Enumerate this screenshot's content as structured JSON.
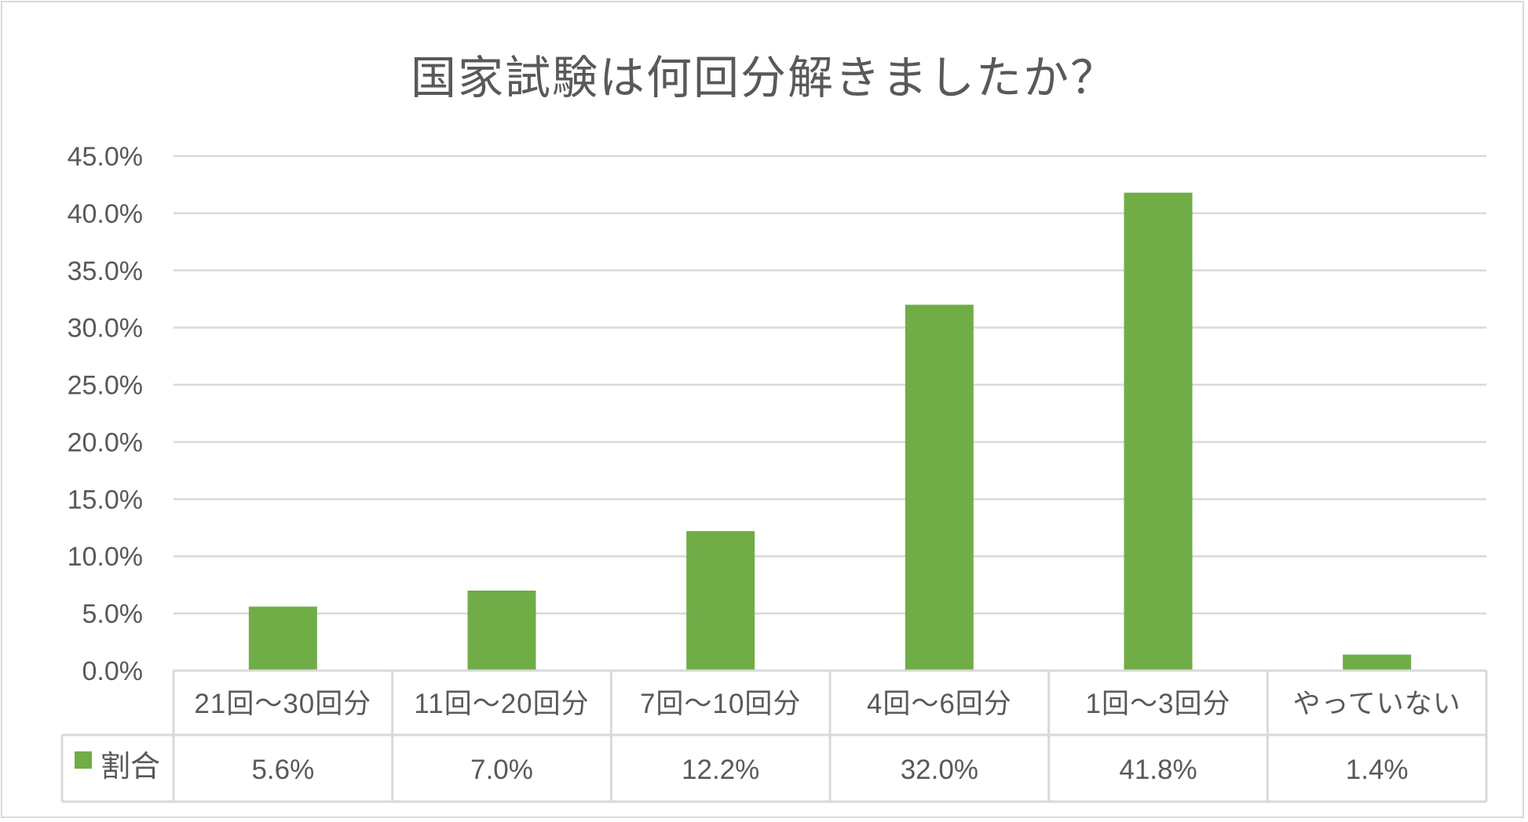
{
  "chart_data": {
    "type": "bar",
    "title": "国家試験は何回分解きましたか？",
    "categories": [
      "21回～30回分",
      "11回～20回分",
      "7回～10回分",
      "4回～6回分",
      "1回～3回分",
      "やっていない"
    ],
    "series": [
      {
        "name": "割合",
        "values": [
          5.6,
          7.0,
          12.2,
          32.0,
          41.8,
          1.4
        ],
        "labels": [
          "5.6%",
          "7.0%",
          "12.2%",
          "32.0%",
          "41.8%",
          "1.4%"
        ],
        "color": "#70ad47"
      }
    ],
    "ylim": [
      0,
      45
    ],
    "yticks": [
      "0.0%",
      "5.0%",
      "10.0%",
      "15.0%",
      "20.0%",
      "25.0%",
      "30.0%",
      "35.0%",
      "40.0%",
      "45.0%"
    ],
    "grid": true,
    "legend": "data-table",
    "gridColor": "#d9d9d9"
  }
}
